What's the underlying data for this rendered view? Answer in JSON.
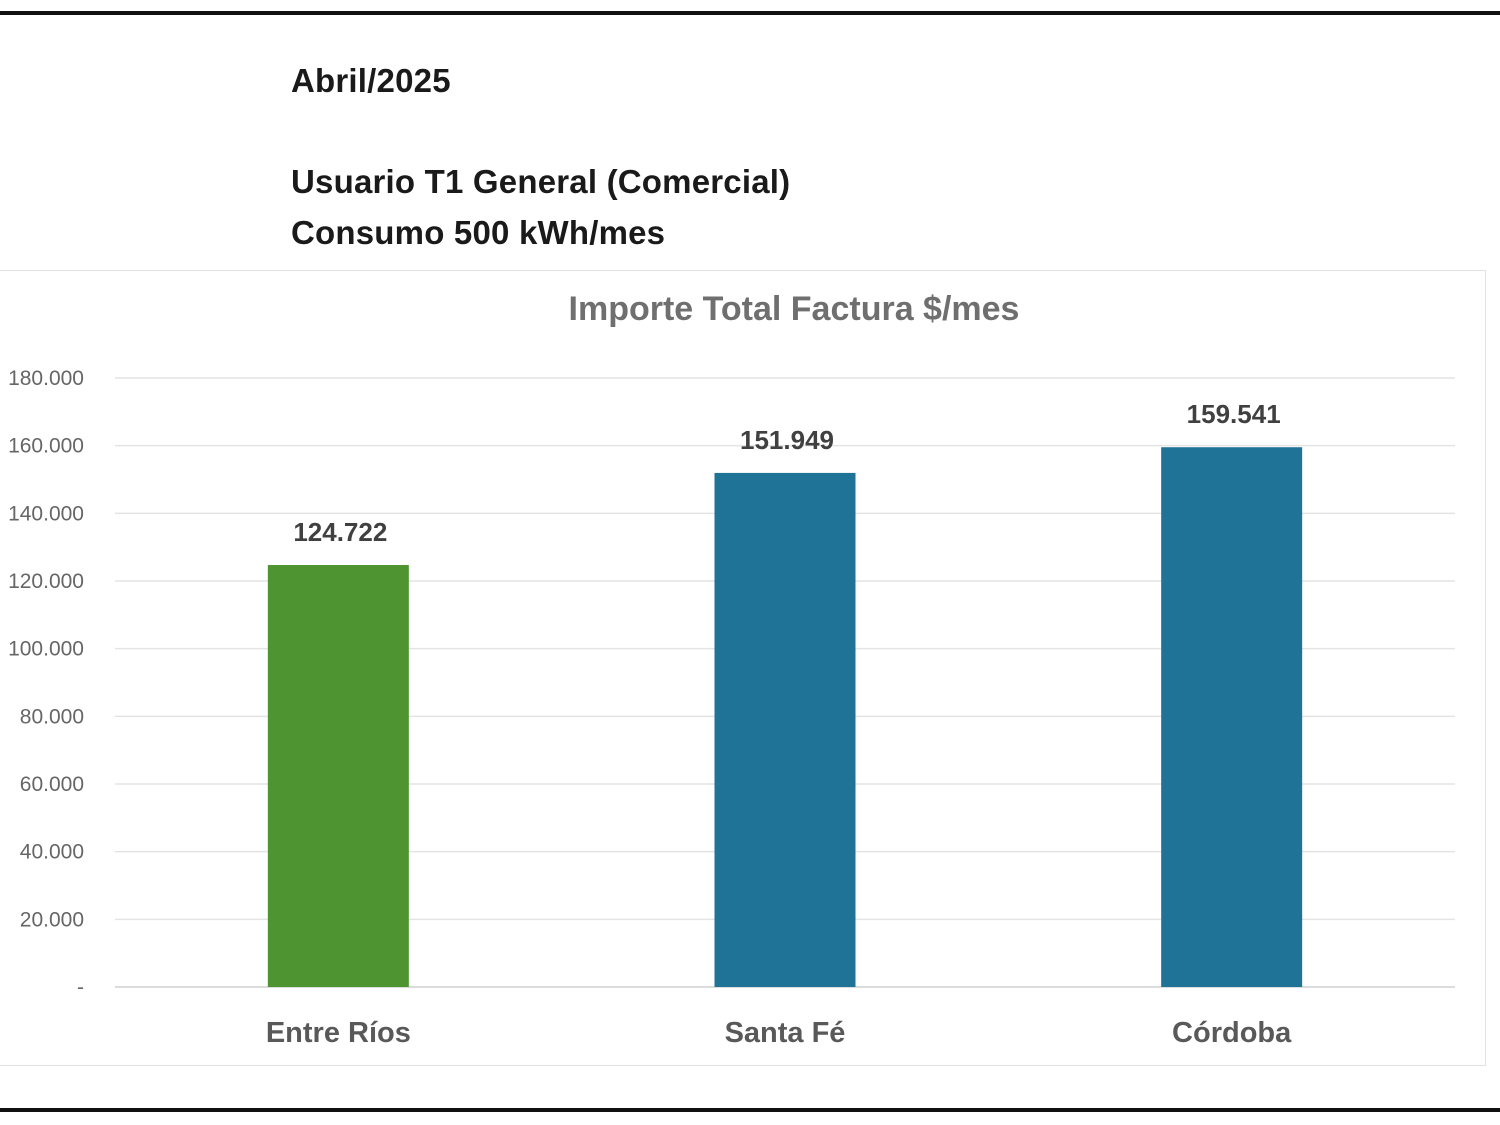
{
  "header": {
    "period": "Abril/2025",
    "user_type": "Usuario T1 General (Comercial)",
    "consumption": "Consumo  500 kWh/mes"
  },
  "chart_data": {
    "type": "bar",
    "title": "Importe Total  Factura $/mes",
    "categories": [
      "Entre Ríos",
      "Santa Fé",
      "Córdoba"
    ],
    "values": [
      124722,
      151949,
      159541
    ],
    "data_labels": [
      "124.722",
      "151.949",
      "159.541"
    ],
    "bar_colors": [
      "#4e9430",
      "#1f7396",
      "#1f7396"
    ],
    "ylim": [
      0,
      180000
    ],
    "y_ticks": [
      0,
      20000,
      40000,
      60000,
      80000,
      100000,
      120000,
      140000,
      160000,
      180000
    ],
    "y_tick_labels": [
      "-",
      "20.000",
      "40.000",
      "60.000",
      "80.000",
      "100.000",
      "120.000",
      "140.000",
      "160.000",
      "180.000"
    ],
    "grid": true,
    "xlabel": "",
    "ylabel": ""
  }
}
